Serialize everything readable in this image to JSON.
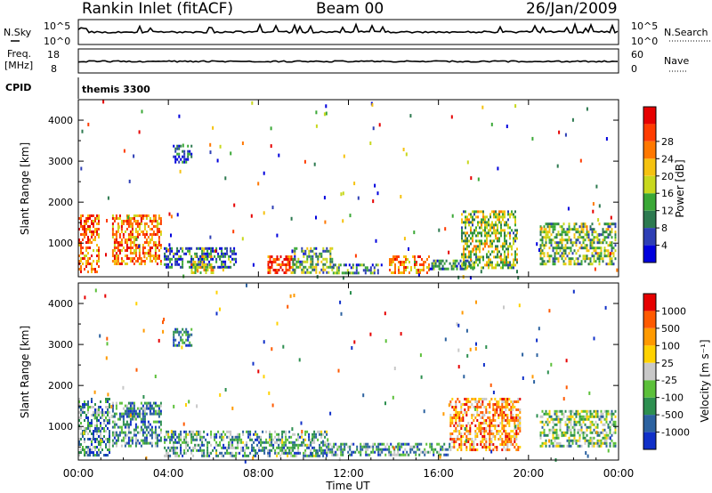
{
  "header": {
    "station": "Rankin Inlet (fitACF)",
    "beam": "Beam 00",
    "date": "26/Jan/2009"
  },
  "top_panels": {
    "nsky_label": "N.Sky",
    "nsky_ticks": [
      "10^5",
      "10^0"
    ],
    "nsearch_label": "N.Search",
    "nsearch_ticks": [
      "10^5",
      "10^0"
    ],
    "freq_label": "Freq.",
    "freq_unit": "[MHz]",
    "freq_ticks": [
      "18",
      "8"
    ],
    "nave_label": "Nave",
    "nave_ticks": [
      "60",
      "0"
    ],
    "cpid_label": "CPID",
    "cpid_value": "themis 3300"
  },
  "chart_data": [
    {
      "type": "heatmap",
      "name": "power",
      "ylabel": "Slant Range [km]",
      "xlabel": "",
      "ylim": [
        180,
        4500
      ],
      "yticks": [
        1000,
        2000,
        3000,
        4000
      ],
      "colorbar": {
        "label": "Power [dB]",
        "ticks": [
          4,
          8,
          12,
          16,
          20,
          24,
          28
        ],
        "colors": [
          "#0000dd",
          "#2e3fb5",
          "#2d7a50",
          "#3aa836",
          "#c8d81e",
          "#f5c210",
          "#ff7800",
          "#ff3c00",
          "#e60000"
        ]
      },
      "patches": [
        {
          "t": [
            0.0,
            0.9
          ],
          "r": [
            300,
            1700
          ],
          "level": 0.78
        },
        {
          "t": [
            1.5,
            3.7
          ],
          "r": [
            500,
            1700
          ],
          "level": 0.72
        },
        {
          "t": [
            3.8,
            7.0
          ],
          "r": [
            400,
            900
          ],
          "level": 0.22
        },
        {
          "t": [
            5.0,
            6.0
          ],
          "r": [
            300,
            700
          ],
          "level": 0.55
        },
        {
          "t": [
            8.4,
            9.6
          ],
          "r": [
            250,
            700
          ],
          "level": 0.85
        },
        {
          "t": [
            9.5,
            11.3
          ],
          "r": [
            300,
            900
          ],
          "level": 0.35
        },
        {
          "t": [
            11.3,
            13.5
          ],
          "r": [
            300,
            500
          ],
          "level": 0.28
        },
        {
          "t": [
            13.8,
            15.6
          ],
          "r": [
            250,
            700
          ],
          "level": 0.68
        },
        {
          "t": [
            15.6,
            17.5
          ],
          "r": [
            350,
            600
          ],
          "level": 0.3
        },
        {
          "t": [
            17.0,
            19.5
          ],
          "r": [
            400,
            1800
          ],
          "level": 0.45
        },
        {
          "t": [
            20.5,
            23.9
          ],
          "r": [
            500,
            1500
          ],
          "level": 0.42
        },
        {
          "t": [
            4.2,
            5.0
          ],
          "r": [
            3000,
            3400
          ],
          "level": 0.15
        }
      ]
    },
    {
      "type": "heatmap",
      "name": "velocity",
      "ylabel": "Slant Range [km]",
      "xlabel": "Time UT",
      "ylim": [
        180,
        4500
      ],
      "yticks": [
        1000,
        2000,
        3000,
        4000
      ],
      "xticks": [
        "00:00",
        "04:00",
        "08:00",
        "12:00",
        "16:00",
        "20:00",
        "00:00"
      ],
      "xrange_hours": [
        0,
        24
      ],
      "colorbar": {
        "label": "Velocity [m s⁻¹]",
        "ticks": [
          "1000",
          "500",
          "100",
          "25",
          "-25",
          "-100",
          "-500",
          "-1000"
        ],
        "colors": [
          "#1030c8",
          "#2c62a0",
          "#2d8f50",
          "#5cc03a",
          "#c8c8c8",
          "#ffd200",
          "#ff9a00",
          "#ff5a00",
          "#e60000"
        ]
      },
      "patches": [
        {
          "t": [
            0.0,
            1.4
          ],
          "r": [
            300,
            1700
          ],
          "level": 0.3
        },
        {
          "t": [
            1.5,
            3.7
          ],
          "r": [
            500,
            1600
          ],
          "level": 0.28
        },
        {
          "t": [
            3.8,
            11.0
          ],
          "r": [
            300,
            900
          ],
          "level": 0.32
        },
        {
          "t": [
            11.0,
            16.5
          ],
          "r": [
            300,
            600
          ],
          "level": 0.3
        },
        {
          "t": [
            16.5,
            19.6
          ],
          "r": [
            400,
            1700
          ],
          "level": 0.72
        },
        {
          "t": [
            20.5,
            23.9
          ],
          "r": [
            500,
            1400
          ],
          "level": 0.4
        },
        {
          "t": [
            4.2,
            5.0
          ],
          "r": [
            3000,
            3400
          ],
          "level": 0.2
        }
      ]
    }
  ]
}
